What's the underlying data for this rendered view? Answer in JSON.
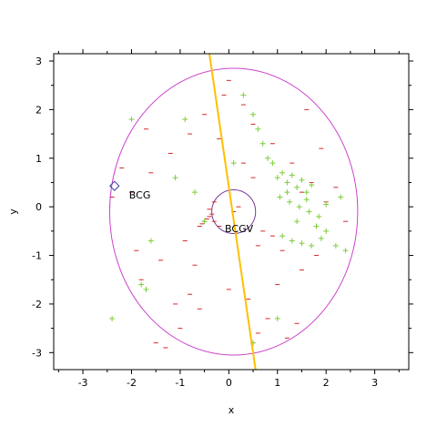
{
  "chart_data": {
    "type": "scatter",
    "title": "",
    "xlabel": "x",
    "ylabel": "y",
    "xlim": [
      -3.6,
      3.7
    ],
    "ylim": [
      -3.35,
      3.15
    ],
    "xticks": [
      -3,
      -2,
      -1,
      0,
      1,
      2,
      3
    ],
    "yticks": [
      -3,
      -2,
      -1,
      0,
      1,
      2,
      3
    ],
    "grid": false,
    "legend": "none",
    "series": [
      {
        "marker": "minus",
        "color": "#d62728",
        "x": [
          -0.1,
          0.3,
          -0.5,
          0.5,
          -0.8,
          0.9,
          -1.2,
          1.3,
          -1.6,
          1.7,
          -2.0,
          2.0,
          0.1,
          -0.3,
          0.7,
          -0.9,
          1.1,
          -1.4,
          1.5,
          -1.8,
          0.0,
          0.4,
          -0.6,
          0.8,
          -1.0,
          1.2,
          -1.3,
          1.6,
          -1.7,
          1.9,
          -2.2,
          2.2,
          0.2,
          -0.2,
          0.6,
          -0.7,
          1.0,
          -1.1,
          1.4,
          -1.5,
          -0.4,
          -0.45,
          -0.5,
          -0.35,
          -0.55,
          -0.4,
          -0.3,
          -0.6,
          0.3,
          0.5,
          -0.2,
          0.0,
          0.9,
          1.5,
          -1.9,
          -2.4,
          2.4,
          -0.8,
          0.6,
          1.8
        ],
        "y": [
          2.3,
          2.1,
          1.9,
          1.7,
          1.5,
          1.3,
          1.1,
          0.9,
          0.7,
          0.5,
          0.3,
          0.1,
          -0.1,
          -0.3,
          -0.5,
          -0.7,
          -0.9,
          -1.1,
          -1.3,
          -1.5,
          -1.7,
          -1.9,
          -2.1,
          -2.3,
          -2.5,
          -2.7,
          -2.9,
          2.0,
          1.6,
          1.2,
          0.8,
          0.4,
          0.0,
          -0.4,
          -0.8,
          -1.2,
          -1.6,
          -2.0,
          -2.4,
          -2.8,
          -0.2,
          -0.25,
          -0.3,
          -0.15,
          -0.35,
          -0.05,
          0.1,
          -0.4,
          0.9,
          0.6,
          1.4,
          2.6,
          -0.6,
          0.3,
          -0.9,
          0.2,
          -0.3,
          -1.8,
          -2.6,
          -1.0
        ]
      },
      {
        "marker": "plus",
        "color": "#7ccd3a",
        "x": [
          1.0,
          1.1,
          1.2,
          1.3,
          1.4,
          1.5,
          1.6,
          1.7,
          0.9,
          0.8,
          1.05,
          1.25,
          1.45,
          1.65,
          1.85,
          2.0,
          2.2,
          2.4,
          0.7,
          0.6,
          1.1,
          1.3,
          1.5,
          1.7,
          1.9,
          1.2,
          1.4,
          1.6,
          1.8,
          2.0,
          2.3,
          0.5,
          0.3,
          -0.5,
          -0.9,
          -1.1,
          -1.6,
          -1.8,
          -1.7,
          -2.4,
          -2.0,
          0.1,
          1.0,
          0.5,
          -0.7
        ],
        "y": [
          0.6,
          0.7,
          0.5,
          0.65,
          0.4,
          0.55,
          0.3,
          0.45,
          0.9,
          1.0,
          0.2,
          0.1,
          0.0,
          -0.1,
          -0.2,
          -0.5,
          -0.8,
          -0.9,
          1.3,
          1.6,
          -0.6,
          -0.7,
          -0.75,
          -0.8,
          -0.65,
          0.3,
          -0.3,
          0.15,
          -0.4,
          0.05,
          0.2,
          1.9,
          2.3,
          -0.3,
          1.8,
          0.6,
          -0.7,
          -1.6,
          -1.7,
          -2.3,
          1.8,
          0.9,
          -2.3,
          -2.8,
          0.3
        ]
      }
    ],
    "annotations": [
      {
        "text": "BCG",
        "x": -2.05,
        "y": 0.17
      },
      {
        "text": "BCGV",
        "x": -0.08,
        "y": -0.52
      }
    ],
    "markers": [
      {
        "shape": "diamond",
        "color": "#3c3ca0",
        "x": -2.35,
        "y": 0.43
      }
    ],
    "ellipse": {
      "cx": 0.1,
      "cy": -0.1,
      "rx": 2.55,
      "ry": 2.95,
      "color": "#cc44cc"
    },
    "circle": {
      "cx": 0.1,
      "cy": -0.1,
      "r": 0.45,
      "color": "#7a3c9a"
    },
    "line": {
      "x1": -0.4,
      "y1": 3.15,
      "x2": 0.55,
      "y2": -3.35,
      "color": "#ffbf00"
    }
  }
}
